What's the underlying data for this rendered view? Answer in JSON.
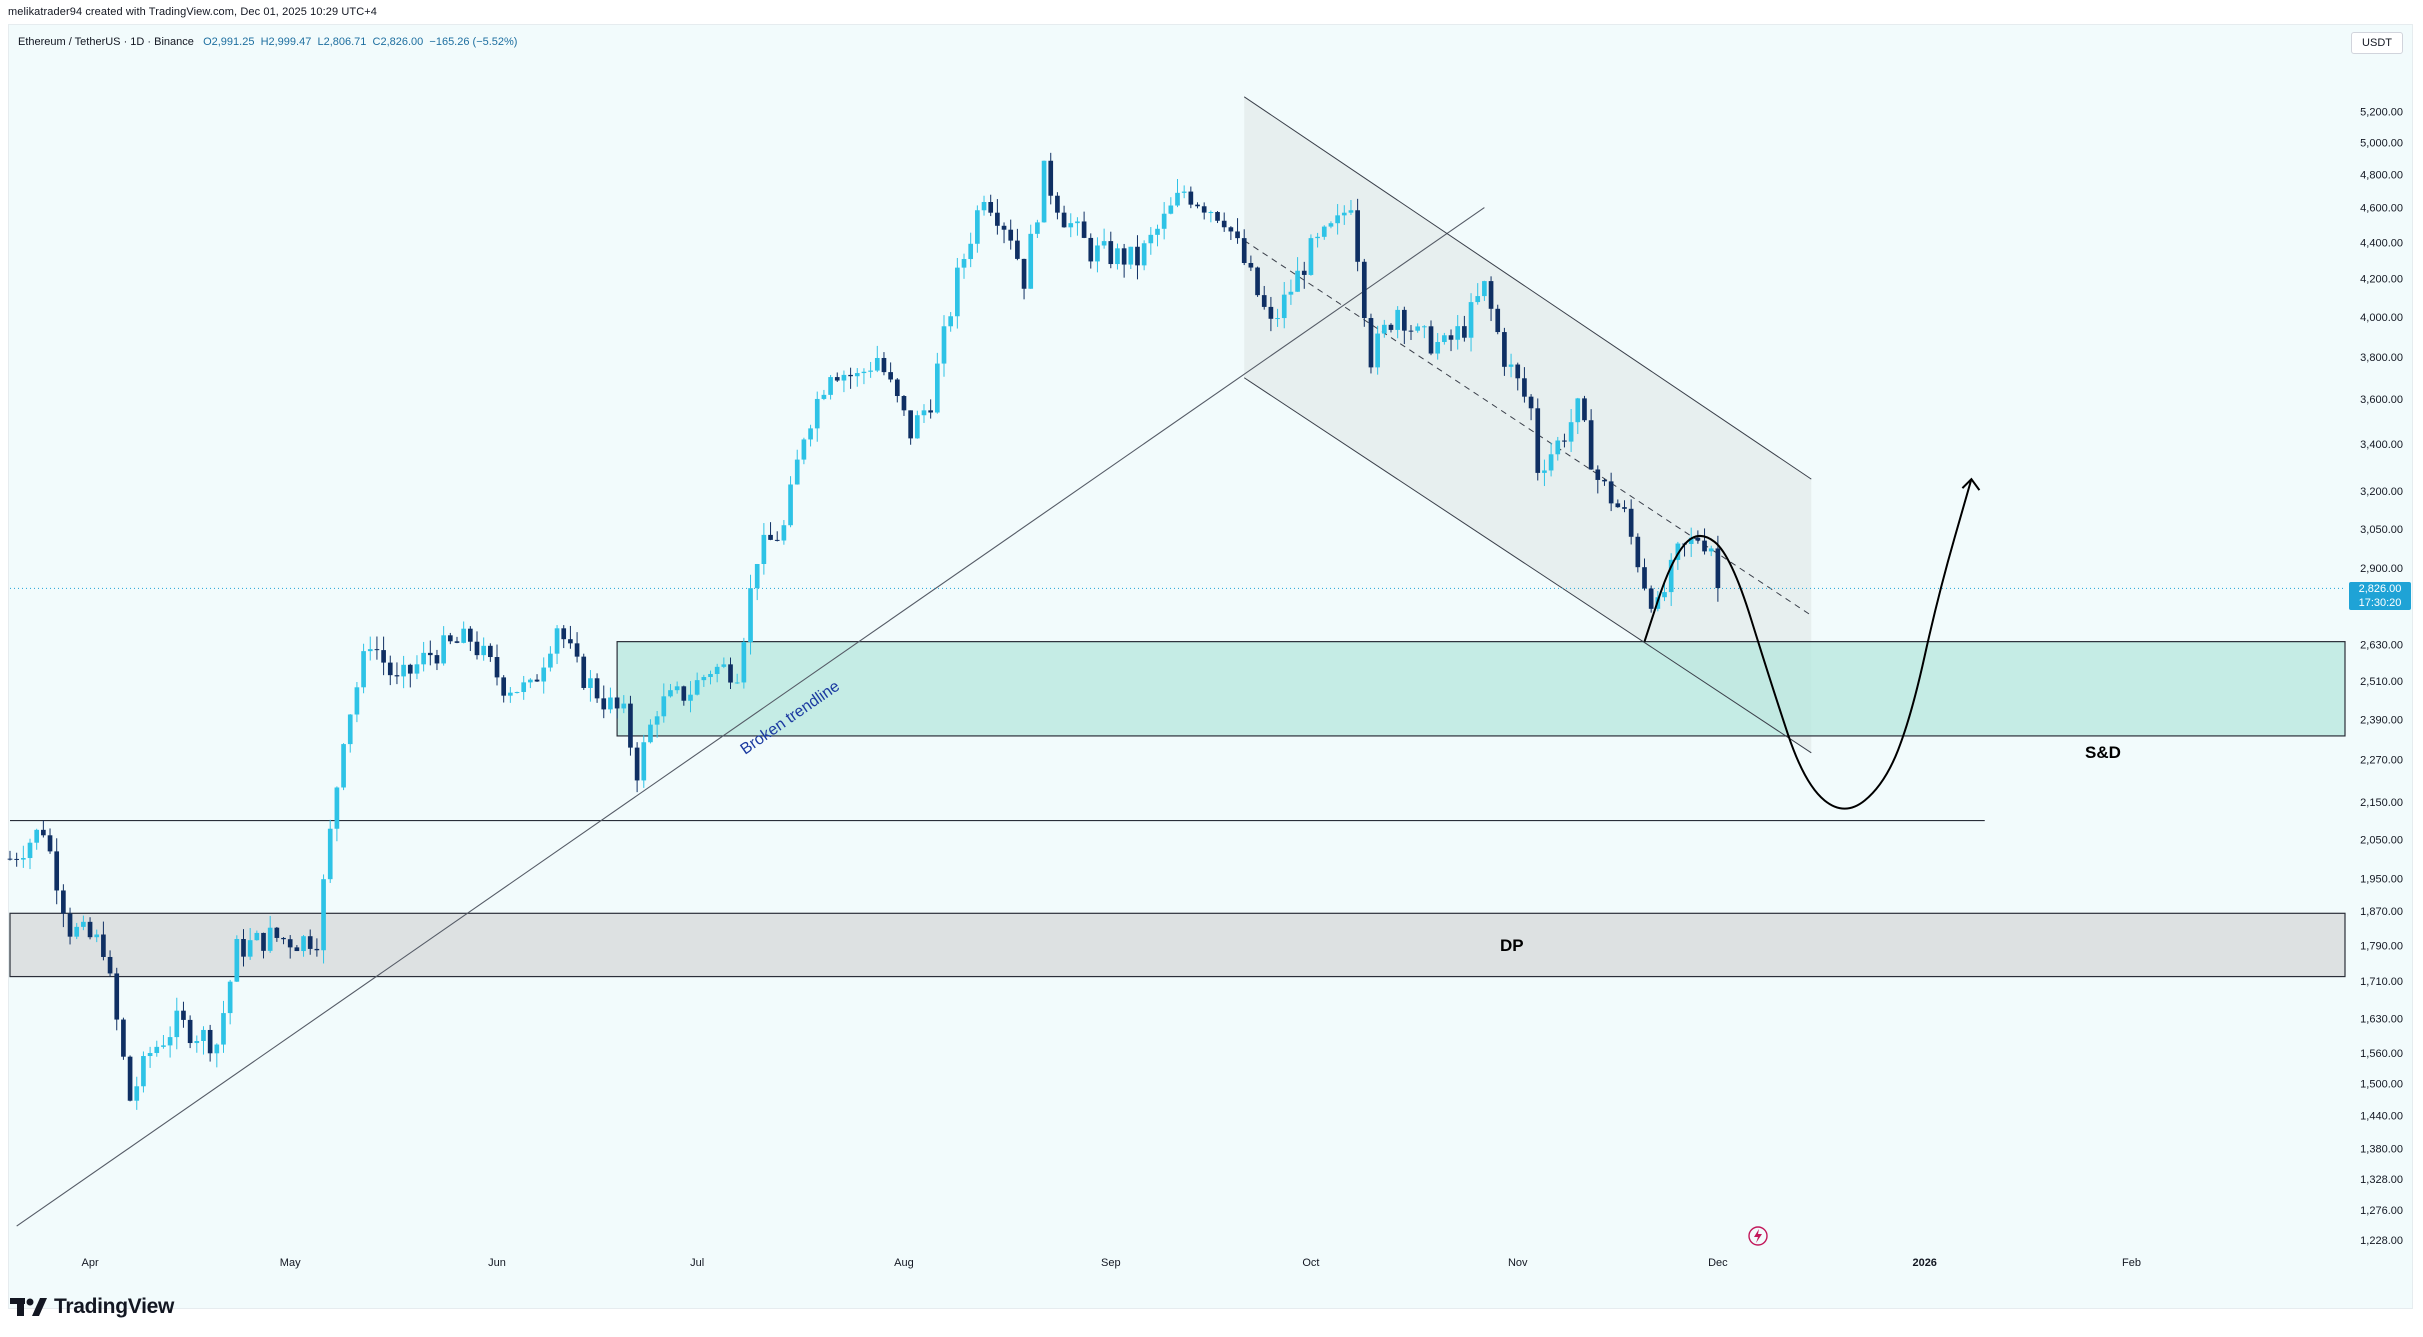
{
  "header": {
    "credit": "melikatrader94 created with TradingView.com, Dec 01, 2025 10:29 UTC+4"
  },
  "legend": {
    "symbol": "Ethereum / TetherUS · 1D · Binance",
    "open": "O2,991.25",
    "high": "H2,999.47",
    "low": "L2,806.71",
    "close": "C2,826.00",
    "change": "−165.26 (−5.52%)"
  },
  "currency": "USDT",
  "last_price": {
    "price": "2,826.00",
    "countdown": "17:30:20"
  },
  "brand": {
    "name": "TradingView"
  },
  "colors": {
    "up_candle": "#2ec3e6",
    "down_candle": "#0f2f63",
    "sd_zone": "#b5e7de",
    "dp_zone": "#d6d8da",
    "channel_fill": "#e2e9ea",
    "last_price": "#1fa3d6"
  },
  "icons": [
    "tradingview-logo-icon",
    "flash-icon"
  ],
  "chart_data": {
    "type": "candlestick",
    "title": "",
    "y_scale": "log",
    "ylim": [
      1200,
      5450
    ],
    "x_range": [
      "2025-03-20",
      "2026-03-05"
    ],
    "grid": false,
    "y_ticks": [
      "5,200.00",
      "5,000.00",
      "4,800.00",
      "4,600.00",
      "4,400.00",
      "4,200.00",
      "4,000.00",
      "3,800.00",
      "3,600.00",
      "3,400.00",
      "3,200.00",
      "3,050.00",
      "2,900.00",
      "2,630.00",
      "2,510.00",
      "2,390.00",
      "2,270.00",
      "2,150.00",
      "2,050.00",
      "1,950.00",
      "1,870.00",
      "1,790.00",
      "1,710.00",
      "1,630.00",
      "1,560.00",
      "1,500.00",
      "1,440.00",
      "1,380.00",
      "1,328.00",
      "1,276.00",
      "1,228.00"
    ],
    "x_ticks": [
      {
        "label": "Apr",
        "date": "2025-04-01"
      },
      {
        "label": "May",
        "date": "2025-05-01"
      },
      {
        "label": "Jun",
        "date": "2025-06-01"
      },
      {
        "label": "Jul",
        "date": "2025-07-01"
      },
      {
        "label": "Aug",
        "date": "2025-08-01"
      },
      {
        "label": "Sep",
        "date": "2025-09-01"
      },
      {
        "label": "Oct",
        "date": "2025-10-01"
      },
      {
        "label": "Nov",
        "date": "2025-11-01"
      },
      {
        "label": "Dec",
        "date": "2025-12-01"
      },
      {
        "label": "2026",
        "date": "2026-01-01"
      },
      {
        "label": "Feb",
        "date": "2026-02-01"
      }
    ],
    "price_path": [
      [
        "2025-03-20",
        2000
      ],
      [
        "2025-03-25",
        2080
      ],
      [
        "2025-03-29",
        1830
      ],
      [
        "2025-04-03",
        1790
      ],
      [
        "2025-04-07",
        1470
      ],
      [
        "2025-04-10",
        1560
      ],
      [
        "2025-04-14",
        1620
      ],
      [
        "2025-04-20",
        1580
      ],
      [
        "2025-04-23",
        1780
      ],
      [
        "2025-04-28",
        1810
      ],
      [
        "2025-05-02",
        1800
      ],
      [
        "2025-05-05",
        1810
      ],
      [
        "2025-05-09",
        2350
      ],
      [
        "2025-05-13",
        2650
      ],
      [
        "2025-05-17",
        2500
      ],
      [
        "2025-05-22",
        2600
      ],
      [
        "2025-05-28",
        2650
      ],
      [
        "2025-06-02",
        2500
      ],
      [
        "2025-06-06",
        2480
      ],
      [
        "2025-06-10",
        2700
      ],
      [
        "2025-06-13",
        2550
      ],
      [
        "2025-06-17",
        2450
      ],
      [
        "2025-06-20",
        2400
      ],
      [
        "2025-06-22",
        2240
      ],
      [
        "2025-06-25",
        2430
      ],
      [
        "2025-06-30",
        2480
      ],
      [
        "2025-07-03",
        2550
      ],
      [
        "2025-07-07",
        2550
      ],
      [
        "2025-07-10",
        2950
      ],
      [
        "2025-07-14",
        3050
      ],
      [
        "2025-07-17",
        3450
      ],
      [
        "2025-07-21",
        3750
      ],
      [
        "2025-07-25",
        3700
      ],
      [
        "2025-07-28",
        3800
      ],
      [
        "2025-08-02",
        3450
      ],
      [
        "2025-08-05",
        3600
      ],
      [
        "2025-08-09",
        4200
      ],
      [
        "2025-08-13",
        4700
      ],
      [
        "2025-08-17",
        4450
      ],
      [
        "2025-08-19",
        4200
      ],
      [
        "2025-08-22",
        4800
      ],
      [
        "2025-08-25",
        4550
      ],
      [
        "2025-08-29",
        4350
      ],
      [
        "2025-09-05",
        4300
      ],
      [
        "2025-09-12",
        4700
      ],
      [
        "2025-09-18",
        4550
      ],
      [
        "2025-09-22",
        4200
      ],
      [
        "2025-09-25",
        3950
      ],
      [
        "2025-10-01",
        4350
      ],
      [
        "2025-10-05",
        4500
      ],
      [
        "2025-10-07",
        4650
      ],
      [
        "2025-10-10",
        3800
      ],
      [
        "2025-10-14",
        4050
      ],
      [
        "2025-10-17",
        3900
      ],
      [
        "2025-10-21",
        3850
      ],
      [
        "2025-10-24",
        3950
      ],
      [
        "2025-10-27",
        4150
      ],
      [
        "2025-10-30",
        3800
      ],
      [
        "2025-11-03",
        3550
      ],
      [
        "2025-11-04",
        3300
      ],
      [
        "2025-11-07",
        3400
      ],
      [
        "2025-11-10",
        3550
      ],
      [
        "2025-11-13",
        3250
      ],
      [
        "2025-11-17",
        3100
      ],
      [
        "2025-11-20",
        2850
      ],
      [
        "2025-11-22",
        2750
      ],
      [
        "2025-11-25",
        2950
      ],
      [
        "2025-11-28",
        3020
      ],
      [
        "2025-11-30",
        2990
      ],
      [
        "2025-12-01",
        2826
      ]
    ],
    "zones": [
      {
        "label": "S&D",
        "price_low": 2340,
        "price_high": 2640,
        "from": "2025-06-19",
        "to": "2026-03-05"
      },
      {
        "label": "DP",
        "price_low": 1720,
        "price_high": 1865,
        "from": "2025-03-20",
        "to": "2026-03-05"
      }
    ],
    "horizontal_levels": [
      {
        "price": 2100,
        "from": "2025-03-20",
        "to": "2026-01-10"
      }
    ],
    "trendlines": [
      {
        "label": "Broken trendline",
        "from": [
          "2025-03-21",
          1250
        ],
        "to": [
          "2025-10-27",
          4600
        ]
      }
    ],
    "descending_channel": {
      "upper": [
        [
          "2025-09-21",
          5300
        ],
        [
          "2025-12-15",
          3250
        ]
      ],
      "lower": [
        [
          "2025-09-21",
          3700
        ],
        [
          "2025-12-15",
          2290
        ]
      ],
      "midline": [
        [
          "2025-09-21",
          4410
        ],
        [
          "2025-12-15",
          2730
        ]
      ]
    },
    "projection_path": [
      [
        "2025-11-20",
        2640
      ],
      [
        "2025-11-24",
        2930
      ],
      [
        "2025-11-28",
        3050
      ],
      [
        "2025-12-03",
        2950
      ],
      [
        "2025-12-09",
        2500
      ],
      [
        "2025-12-14",
        2200
      ],
      [
        "2025-12-20",
        2110
      ],
      [
        "2025-12-26",
        2200
      ],
      [
        "2025-12-30",
        2400
      ],
      [
        "2026-01-03",
        2800
      ],
      [
        "2026-01-08",
        3250
      ]
    ],
    "last_price_line": 2826
  }
}
